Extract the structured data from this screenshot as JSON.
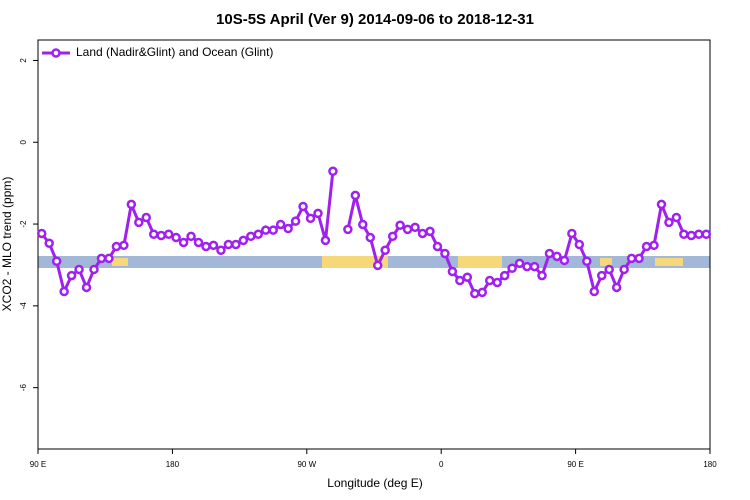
{
  "chart_data": {
    "type": "line",
    "title": "10S-5S April (Ver 9)   2014-09-06 to 2018-12-31",
    "xlabel": "Longitude (deg E)",
    "ylabel": "XCO2 - MLO trend (ppm)",
    "xlim": [
      90,
      540
    ],
    "xticks": [
      {
        "value": 90,
        "label": "90 E"
      },
      180,
      {
        "value": 270,
        "label": "90 W"
      },
      {
        "value": 360,
        "label": "0"
      },
      {
        "value": 450,
        "label": "90 E"
      },
      180
    ],
    "ylim": [
      -7.5,
      2.5
    ],
    "yticks": [
      2,
      0,
      -2,
      -4,
      -6
    ],
    "legend": "top-left",
    "x": [
      92.5,
      97.5,
      102.5,
      107.5,
      112.5,
      117.5,
      122.5,
      127.5,
      132.5,
      137.5,
      142.5,
      147.5,
      152.5,
      157.5,
      162.5,
      167.5,
      172.5,
      177.5,
      182.5,
      187.5,
      192.5,
      197.5,
      202.5,
      207.5,
      212.5,
      217.5,
      222.5,
      227.5,
      232.5,
      237.5,
      242.5,
      247.5,
      252.5,
      257.5,
      262.5,
      267.5,
      272.5,
      277.5,
      282.5,
      287.5,
      292.5,
      297.5,
      302.5,
      307.5,
      312.5,
      317.5,
      322.5,
      327.5,
      332.5,
      337.5,
      342.5,
      347.5,
      352.5,
      357.5,
      362.5,
      367.5,
      372.5,
      377.5,
      382.5,
      387.5,
      392.5,
      397.5,
      402.5,
      407.5,
      412.5,
      417.5,
      422.5,
      427.5,
      432.5,
      437.5,
      442.5,
      447.5,
      452.5,
      457.5,
      462.5,
      467.5,
      472.5,
      477.5,
      482.5,
      487.5,
      492.5,
      497.5,
      502.5,
      507.5,
      512.5,
      517.5,
      522.5,
      527.5,
      532.5,
      537.5
    ],
    "series": [
      {
        "name": "Land (Nadir&Glint) and Ocean (Glint)",
        "color": "#a020f0",
        "values": [
          -2.23,
          -2.47,
          -2.91,
          -3.65,
          -3.26,
          -3.11,
          -3.55,
          -3.11,
          -2.84,
          -2.84,
          -2.55,
          -2.52,
          -1.52,
          -1.96,
          -1.84,
          -2.25,
          -2.28,
          -2.25,
          -2.33,
          -2.45,
          -2.3,
          -2.45,
          -2.55,
          -2.52,
          -2.64,
          -2.5,
          -2.5,
          -2.4,
          -2.3,
          -2.25,
          -2.15,
          -2.15,
          -2.01,
          -2.11,
          -1.93,
          -1.57,
          -1.86,
          -1.74,
          -2.4,
          -0.71,
          null,
          -2.13,
          -1.3,
          -2.01,
          -2.33,
          -3.01,
          -2.64,
          -2.3,
          -2.03,
          -2.13,
          -2.08,
          -2.23,
          -2.18,
          -2.55,
          -2.72,
          -3.16,
          -3.38,
          -3.3,
          -3.7,
          -3.67,
          -3.38,
          -3.43,
          -3.26,
          -3.08,
          -2.96,
          -3.04,
          -3.04,
          -3.26,
          -2.72,
          -2.79,
          -2.89,
          -2.23,
          -2.5,
          -2.91,
          -3.65,
          -3.26,
          -3.11,
          -3.55,
          -3.11,
          -2.84,
          -2.84,
          -2.55,
          -2.52,
          -1.52,
          -1.96,
          -1.84,
          -2.25,
          -2.28,
          -2.25,
          -2.25
        ]
      }
    ]
  }
}
